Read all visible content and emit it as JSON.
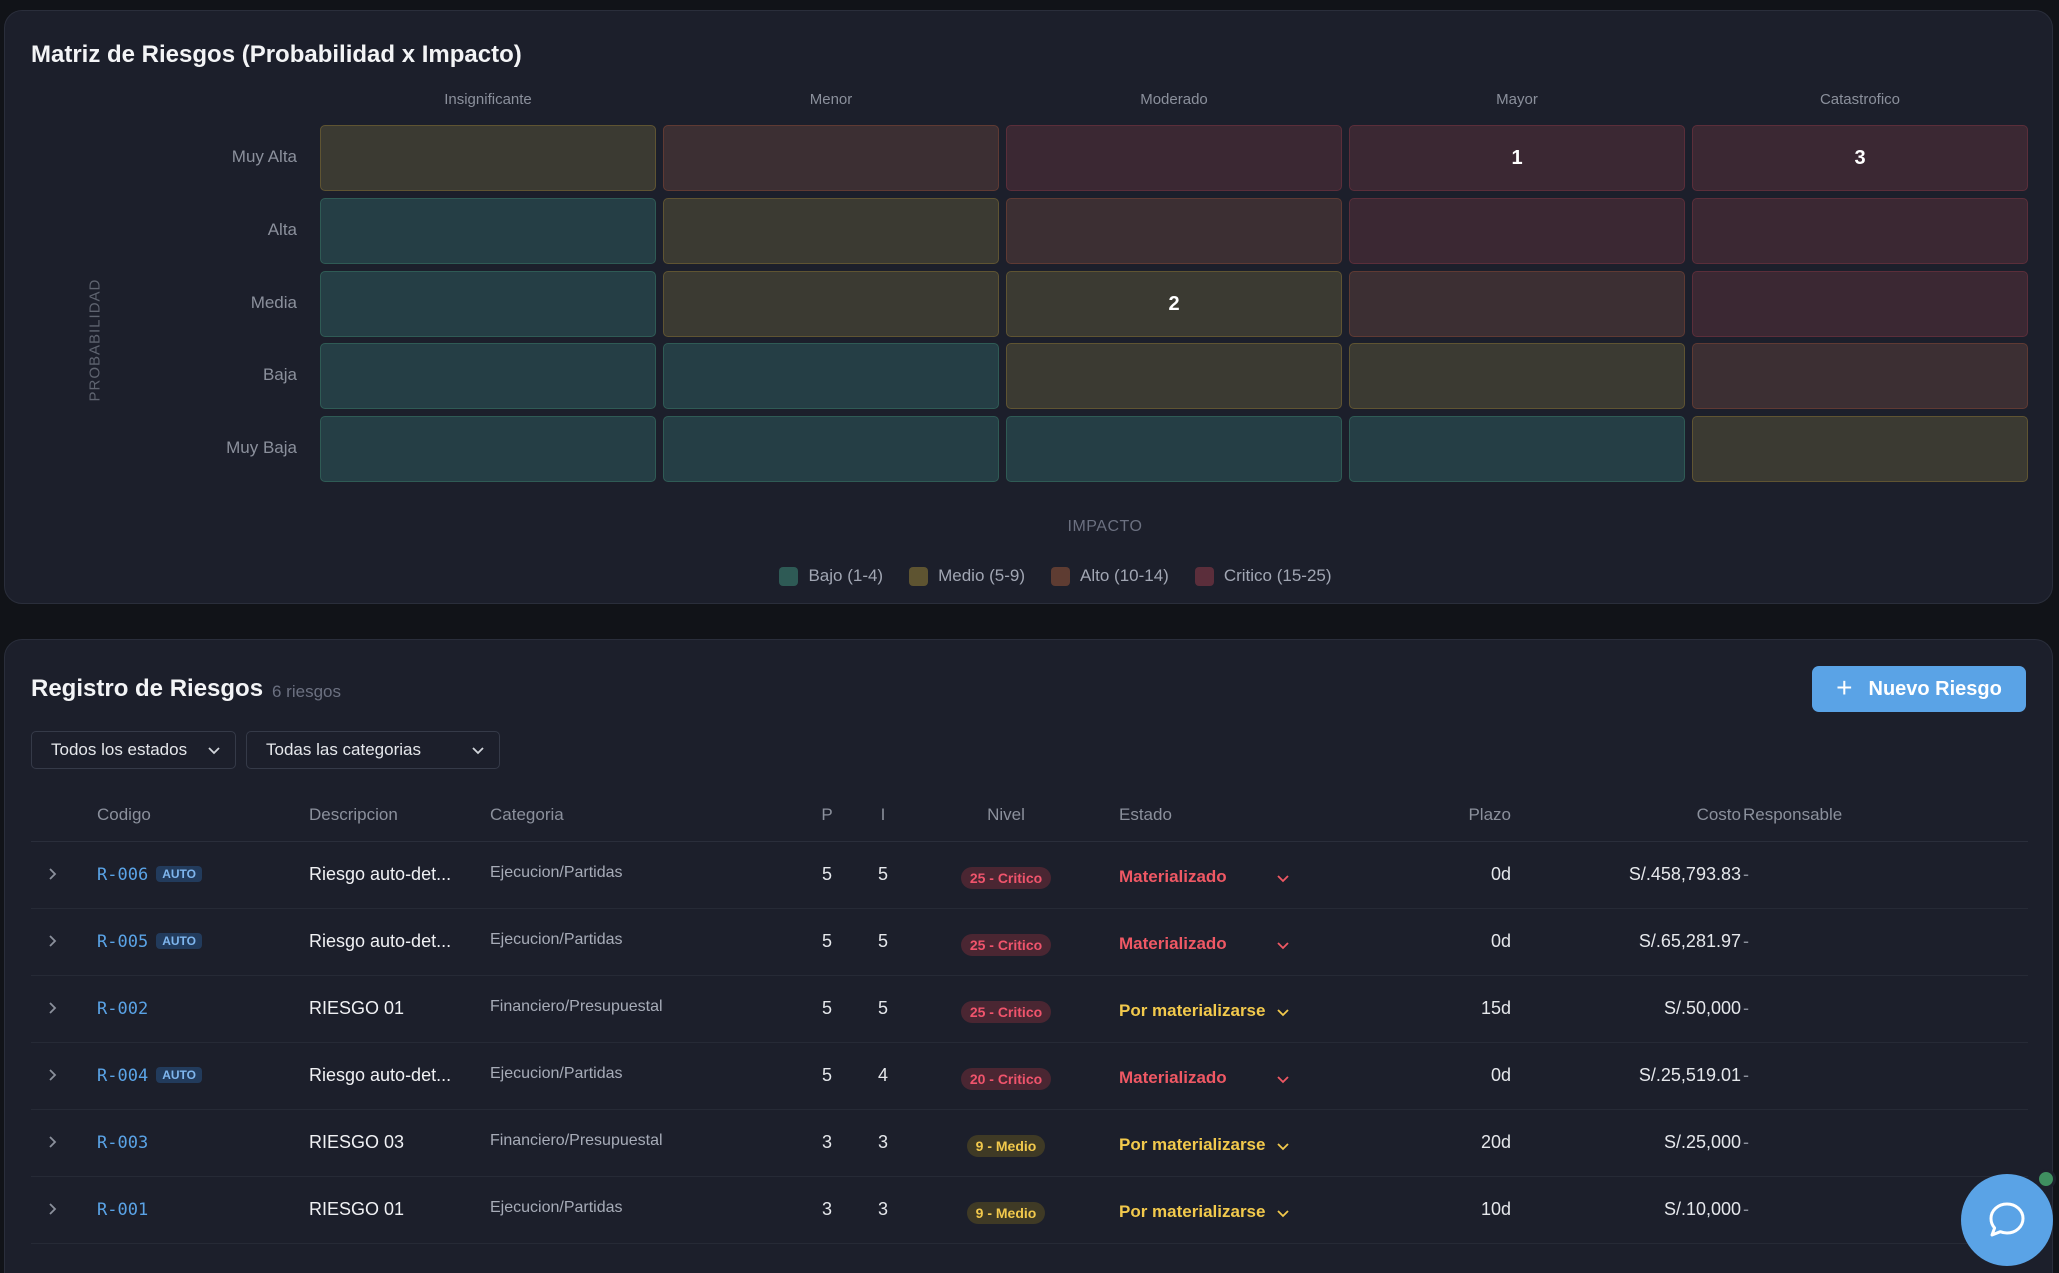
{
  "matrix": {
    "title": "Matriz de Riesgos (Probabilidad x Impacto)",
    "impact_columns": [
      "Insignificante",
      "Menor",
      "Moderado",
      "Mayor",
      "Catastrofico"
    ],
    "probability_rows": [
      "Muy Alta",
      "Alta",
      "Media",
      "Baja",
      "Muy Baja"
    ],
    "cells": [
      [
        {
          "level": "med",
          "count": ""
        },
        {
          "level": "high",
          "count": ""
        },
        {
          "level": "crit",
          "count": ""
        },
        {
          "level": "crit",
          "count": "1"
        },
        {
          "level": "crit",
          "count": "3"
        }
      ],
      [
        {
          "level": "low",
          "count": ""
        },
        {
          "level": "med",
          "count": ""
        },
        {
          "level": "high",
          "count": ""
        },
        {
          "level": "crit",
          "count": ""
        },
        {
          "level": "crit",
          "count": ""
        }
      ],
      [
        {
          "level": "low",
          "count": ""
        },
        {
          "level": "med",
          "count": ""
        },
        {
          "level": "med",
          "count": "2"
        },
        {
          "level": "high",
          "count": ""
        },
        {
          "level": "crit",
          "count": ""
        }
      ],
      [
        {
          "level": "low",
          "count": ""
        },
        {
          "level": "low",
          "count": ""
        },
        {
          "level": "med",
          "count": ""
        },
        {
          "level": "med",
          "count": ""
        },
        {
          "level": "high",
          "count": ""
        }
      ],
      [
        {
          "level": "low",
          "count": ""
        },
        {
          "level": "low",
          "count": ""
        },
        {
          "level": "low",
          "count": ""
        },
        {
          "level": "low",
          "count": ""
        },
        {
          "level": "med",
          "count": ""
        }
      ]
    ],
    "y_axis_label": "PROBABILIDAD",
    "x_axis_label": "IMPACTO",
    "legend": [
      {
        "label": "Bajo (1-4)",
        "color": "#2e5a55"
      },
      {
        "label": "Medio (5-9)",
        "color": "#5e5431"
      },
      {
        "label": "Alto (10-14)",
        "color": "#5e3c32"
      },
      {
        "label": "Critico (15-25)",
        "color": "#5b2e3b"
      }
    ]
  },
  "register": {
    "title": "Registro de Riesgos",
    "count": "6 riesgos",
    "new_button_label": "Nuevo Riesgo",
    "filters": {
      "status": "Todos los estados",
      "category": "Todas las categorias"
    },
    "columns": {
      "code": "Codigo",
      "description": "Descripcion",
      "category": "Categoria",
      "p": "P",
      "i": "I",
      "level": "Nivel",
      "state": "Estado",
      "term": "Plazo",
      "cost": "Costo",
      "owner": "Responsable"
    },
    "rows": [
      {
        "code": "R-006",
        "auto": "AUTO",
        "description": "Riesgo auto-det...",
        "category": "Ejecucion/Partidas",
        "p": "5",
        "i": "5",
        "level": "25 - Critico",
        "level_type": "crit",
        "state": "Materializado",
        "state_type": "mat",
        "term": "0d",
        "cost": "S/.458,793.83",
        "owner": "-"
      },
      {
        "code": "R-005",
        "auto": "AUTO",
        "description": "Riesgo auto-det...",
        "category": "Ejecucion/Partidas",
        "p": "5",
        "i": "5",
        "level": "25 - Critico",
        "level_type": "crit",
        "state": "Materializado",
        "state_type": "mat",
        "term": "0d",
        "cost": "S/.65,281.97",
        "owner": "-"
      },
      {
        "code": "R-002",
        "auto": "",
        "description": "RIESGO 01",
        "category": "Financiero/Presupuestal",
        "p": "5",
        "i": "5",
        "level": "25 - Critico",
        "level_type": "crit",
        "state": "Por materializarse",
        "state_type": "por",
        "term": "15d",
        "cost": "S/.50,000",
        "owner": "-"
      },
      {
        "code": "R-004",
        "auto": "AUTO",
        "description": "Riesgo auto-det...",
        "category": "Ejecucion/Partidas",
        "p": "5",
        "i": "4",
        "level": "20 - Critico",
        "level_type": "crit",
        "state": "Materializado",
        "state_type": "mat",
        "term": "0d",
        "cost": "S/.25,519.01",
        "owner": "-"
      },
      {
        "code": "R-003",
        "auto": "",
        "description": "RIESGO 03",
        "category": "Financiero/Presupuestal",
        "p": "3",
        "i": "3",
        "level": "9 - Medio",
        "level_type": "med",
        "state": "Por materializarse",
        "state_type": "por",
        "term": "20d",
        "cost": "S/.25,000",
        "owner": "-"
      },
      {
        "code": "R-001",
        "auto": "",
        "description": "RIESGO 01",
        "category": "Ejecucion/Partidas",
        "p": "3",
        "i": "3",
        "level": "9 - Medio",
        "level_type": "med",
        "state": "Por materializarse",
        "state_type": "por",
        "term": "10d",
        "cost": "S/.10,000",
        "owner": "-"
      }
    ]
  },
  "icons": {
    "chat": "chat-bubble-icon",
    "expand": "chevron-right-icon",
    "dropdown": "chevron-down-icon",
    "add": "plus-icon"
  }
}
